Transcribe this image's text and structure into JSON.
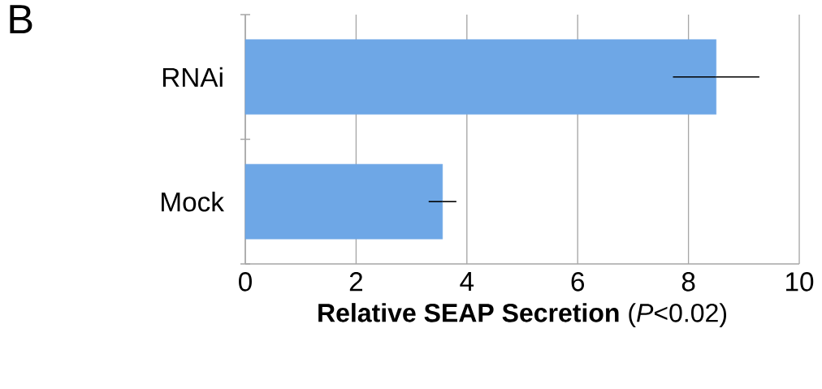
{
  "chart_data": {
    "type": "bar",
    "orientation": "horizontal",
    "categories": [
      "RNAi",
      "Mock"
    ],
    "values": [
      8.5,
      3.56
    ],
    "errors": [
      0.78,
      0.25
    ],
    "color": "#6ea7e6",
    "xlim": [
      0,
      10
    ],
    "xticks": [
      0,
      2,
      4,
      6,
      8,
      10
    ],
    "xlabel": "**Relative SEAP Secretion** (*P*<0.02)",
    "annotations": [
      "B"
    ],
    "grid": "x"
  }
}
